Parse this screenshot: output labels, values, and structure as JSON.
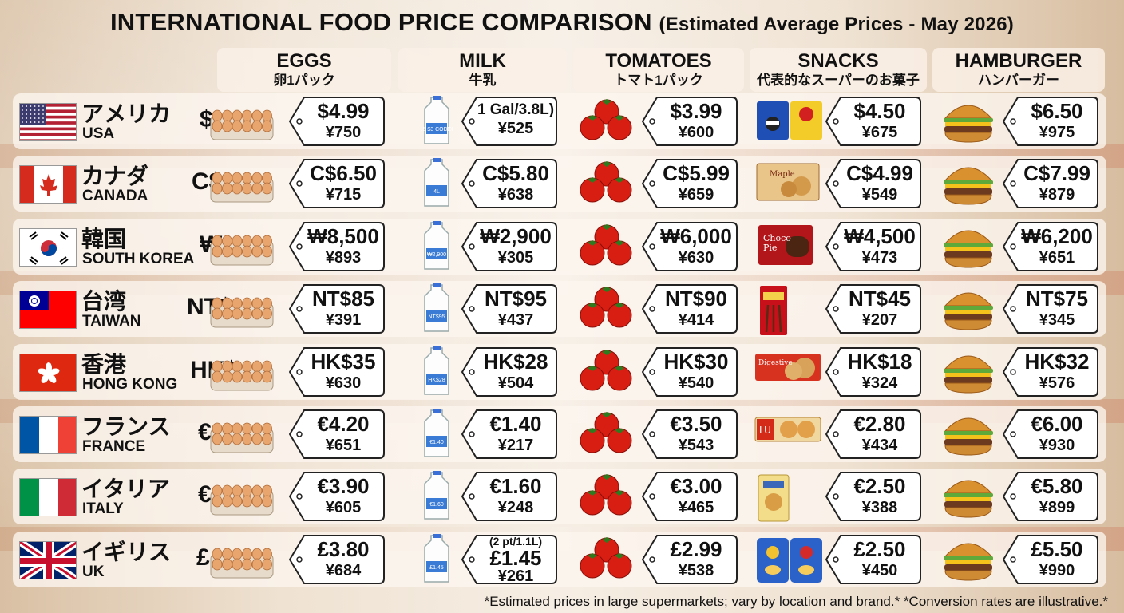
{
  "title": "INTERNATIONAL FOOD PRICE COMPARISON",
  "subtitle": "(Estimated Average Prices - May 2026)",
  "columns": [
    {
      "en": "EGGS",
      "jp": "卵1パック"
    },
    {
      "en": "MILK",
      "jp": "牛乳"
    },
    {
      "en": "TOMATOES",
      "jp": "トマト1パック"
    },
    {
      "en": "SNACKS",
      "jp": "代表的なスーパーのお菓子"
    },
    {
      "en": "HAMBURGER",
      "jp": "ハンバーガー"
    }
  ],
  "rows": [
    {
      "jp": "アメリカ",
      "en": "USA",
      "currency": "$",
      "flag": "usa",
      "eggs": {
        "price": "$4.99",
        "yen": "¥750"
      },
      "milk": {
        "price": "1 Gal/3.8L)",
        "yen": "¥525",
        "label": "5.5 $3 CODEC"
      },
      "tomatoes": {
        "price": "$3.99",
        "yen": "¥600"
      },
      "snacks": {
        "price": "$4.50",
        "yen": "¥675",
        "pack": "oreo-and-lays"
      },
      "hamburger": {
        "price": "$6.50",
        "yen": "¥975"
      }
    },
    {
      "jp": "カナダ",
      "en": "CANADA",
      "currency": "C$",
      "flag": "canada",
      "eggs": {
        "price": "C$6.50",
        "yen": "¥715"
      },
      "milk": {
        "price": "C$5.80",
        "yen": "¥638",
        "label": "4L"
      },
      "tomatoes": {
        "price": "C$5.99",
        "yen": "¥659"
      },
      "snacks": {
        "price": "C$4.99",
        "yen": "¥549",
        "pack": "maple-cookies"
      },
      "hamburger": {
        "price": "C$7.99",
        "yen": "¥879"
      }
    },
    {
      "jp": "韓国",
      "en": "SOUTH KOREA",
      "currency": "₩",
      "flag": "korea",
      "eggs": {
        "price": "₩8,500",
        "yen": "¥893"
      },
      "milk": {
        "price": "₩2,900",
        "yen": "¥305",
        "label": "₩2,900"
      },
      "tomatoes": {
        "price": "₩6,000",
        "yen": "¥630"
      },
      "snacks": {
        "price": "₩4,500",
        "yen": "¥473",
        "pack": "choco-pie"
      },
      "hamburger": {
        "price": "₩6,200",
        "yen": "¥651"
      }
    },
    {
      "jp": "台湾",
      "en": "TAIWAN",
      "currency": "NT$",
      "flag": "taiwan",
      "eggs": {
        "price": "NT$85",
        "yen": "¥391"
      },
      "milk": {
        "price": "NT$95",
        "yen": "¥437",
        "label": "NT$95"
      },
      "tomatoes": {
        "price": "NT$90",
        "yen": "¥414"
      },
      "snacks": {
        "price": "NT$45",
        "yen": "¥207",
        "pack": "pocky"
      },
      "hamburger": {
        "price": "NT$75",
        "yen": "¥345"
      }
    },
    {
      "jp": "香港",
      "en": "HONG KONG",
      "currency": "HK$",
      "flag": "hongkong",
      "eggs": {
        "price": "HK$35",
        "yen": "¥630"
      },
      "milk": {
        "price": "HK$28",
        "yen": "¥504",
        "label": "HK$28"
      },
      "tomatoes": {
        "price": "HK$30",
        "yen": "¥540"
      },
      "snacks": {
        "price": "HK$18",
        "yen": "¥324",
        "pack": "digestive"
      },
      "hamburger": {
        "price": "HK$32",
        "yen": "¥576"
      }
    },
    {
      "jp": "フランス",
      "en": "FRANCE",
      "currency": "€",
      "flag": "france",
      "eggs": {
        "price": "€4.20",
        "yen": "¥651"
      },
      "milk": {
        "price": "€1.40",
        "yen": "¥217",
        "label": "€1.40"
      },
      "tomatoes": {
        "price": "€3.50",
        "yen": "¥543"
      },
      "snacks": {
        "price": "€2.80",
        "yen": "¥434",
        "pack": "lu-biscuits"
      },
      "hamburger": {
        "price": "€6.00",
        "yen": "¥930"
      }
    },
    {
      "jp": "イタリア",
      "en": "ITALY",
      "currency": "€",
      "flag": "italy",
      "eggs": {
        "price": "€3.90",
        "yen": "¥605"
      },
      "milk": {
        "price": "€1.60",
        "yen": "¥248",
        "label": "€1.60"
      },
      "tomatoes": {
        "price": "€3.00",
        "yen": "¥465"
      },
      "snacks": {
        "price": "€2.50",
        "yen": "¥388",
        "pack": "biscuits"
      },
      "hamburger": {
        "price": "€5.80",
        "yen": "¥899"
      }
    },
    {
      "jp": "イギリス",
      "en": "UK",
      "currency": "£",
      "flag": "uk",
      "eggs": {
        "price": "£3.80",
        "yen": "¥684"
      },
      "milk": {
        "price": "£1.45",
        "yen": "¥261",
        "note": "(2 pt/1.1L)",
        "label": "£1.45"
      },
      "tomatoes": {
        "price": "£2.99",
        "yen": "¥538"
      },
      "snacks": {
        "price": "£2.50",
        "yen": "¥450",
        "pack": "crisps"
      },
      "hamburger": {
        "price": "£5.50",
        "yen": "¥990"
      }
    }
  ],
  "footer": "*Estimated prices in large supermarkets; vary by location and brand.* *Conversion rates are illustrative.*"
}
